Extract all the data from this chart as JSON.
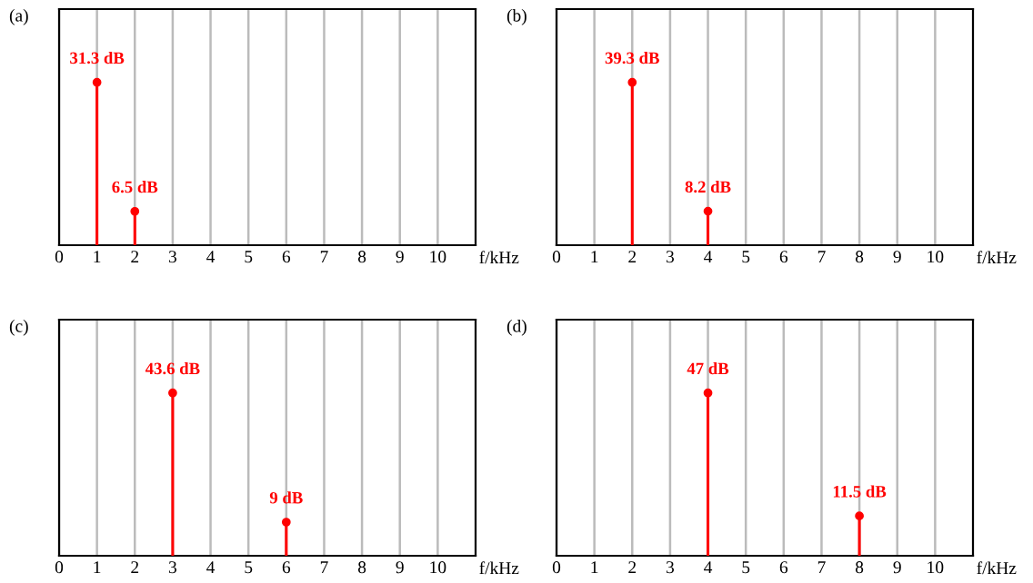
{
  "chart_data": [
    {
      "type": "lollipop",
      "title": "(a)",
      "xlabel": "f/kHz",
      "x": [
        1,
        2
      ],
      "values": [
        31.3,
        6.5
      ],
      "value_labels": [
        "31.3 dB",
        "6.5 dB"
      ],
      "color": "#ff0000",
      "marker": "circle",
      "xlim": [
        0,
        11
      ],
      "xticks": [
        0,
        1,
        2,
        3,
        4,
        5,
        6,
        7,
        8,
        9,
        10
      ],
      "grid": "x",
      "tick_labels": "x"
    },
    {
      "type": "lollipop",
      "title": "(b)",
      "xlabel": "f/kHz",
      "x": [
        2,
        4
      ],
      "values": [
        39.3,
        8.2
      ],
      "value_labels": [
        "39.3 dB",
        "8.2 dB"
      ],
      "color": "#ff0000",
      "marker": "circle",
      "xlim": [
        0,
        11
      ],
      "xticks": [
        0,
        1,
        2,
        3,
        4,
        5,
        6,
        7,
        8,
        9,
        10
      ],
      "grid": "x",
      "tick_labels": "x"
    },
    {
      "type": "lollipop",
      "title": "(c)",
      "xlabel": "f/kHz",
      "x": [
        3,
        6
      ],
      "values": [
        43.6,
        9
      ],
      "value_labels": [
        "43.6 dB",
        "9 dB"
      ],
      "color": "#ff0000",
      "marker": "circle",
      "xlim": [
        0,
        11
      ],
      "xticks": [
        0,
        1,
        2,
        3,
        4,
        5,
        6,
        7,
        8,
        9,
        10
      ],
      "grid": "x",
      "tick_labels": "x"
    },
    {
      "type": "lollipop",
      "title": "(d)",
      "xlabel": "f/kHz",
      "x": [
        4,
        8
      ],
      "values": [
        47,
        11.5
      ],
      "value_labels": [
        "47 dB",
        "11.5 dB"
      ],
      "color": "#ff0000",
      "marker": "circle",
      "xlim": [
        0,
        11
      ],
      "xticks": [
        0,
        1,
        2,
        3,
        4,
        5,
        6,
        7,
        8,
        9,
        10
      ],
      "grid": "x",
      "tick_labels": "x"
    }
  ]
}
